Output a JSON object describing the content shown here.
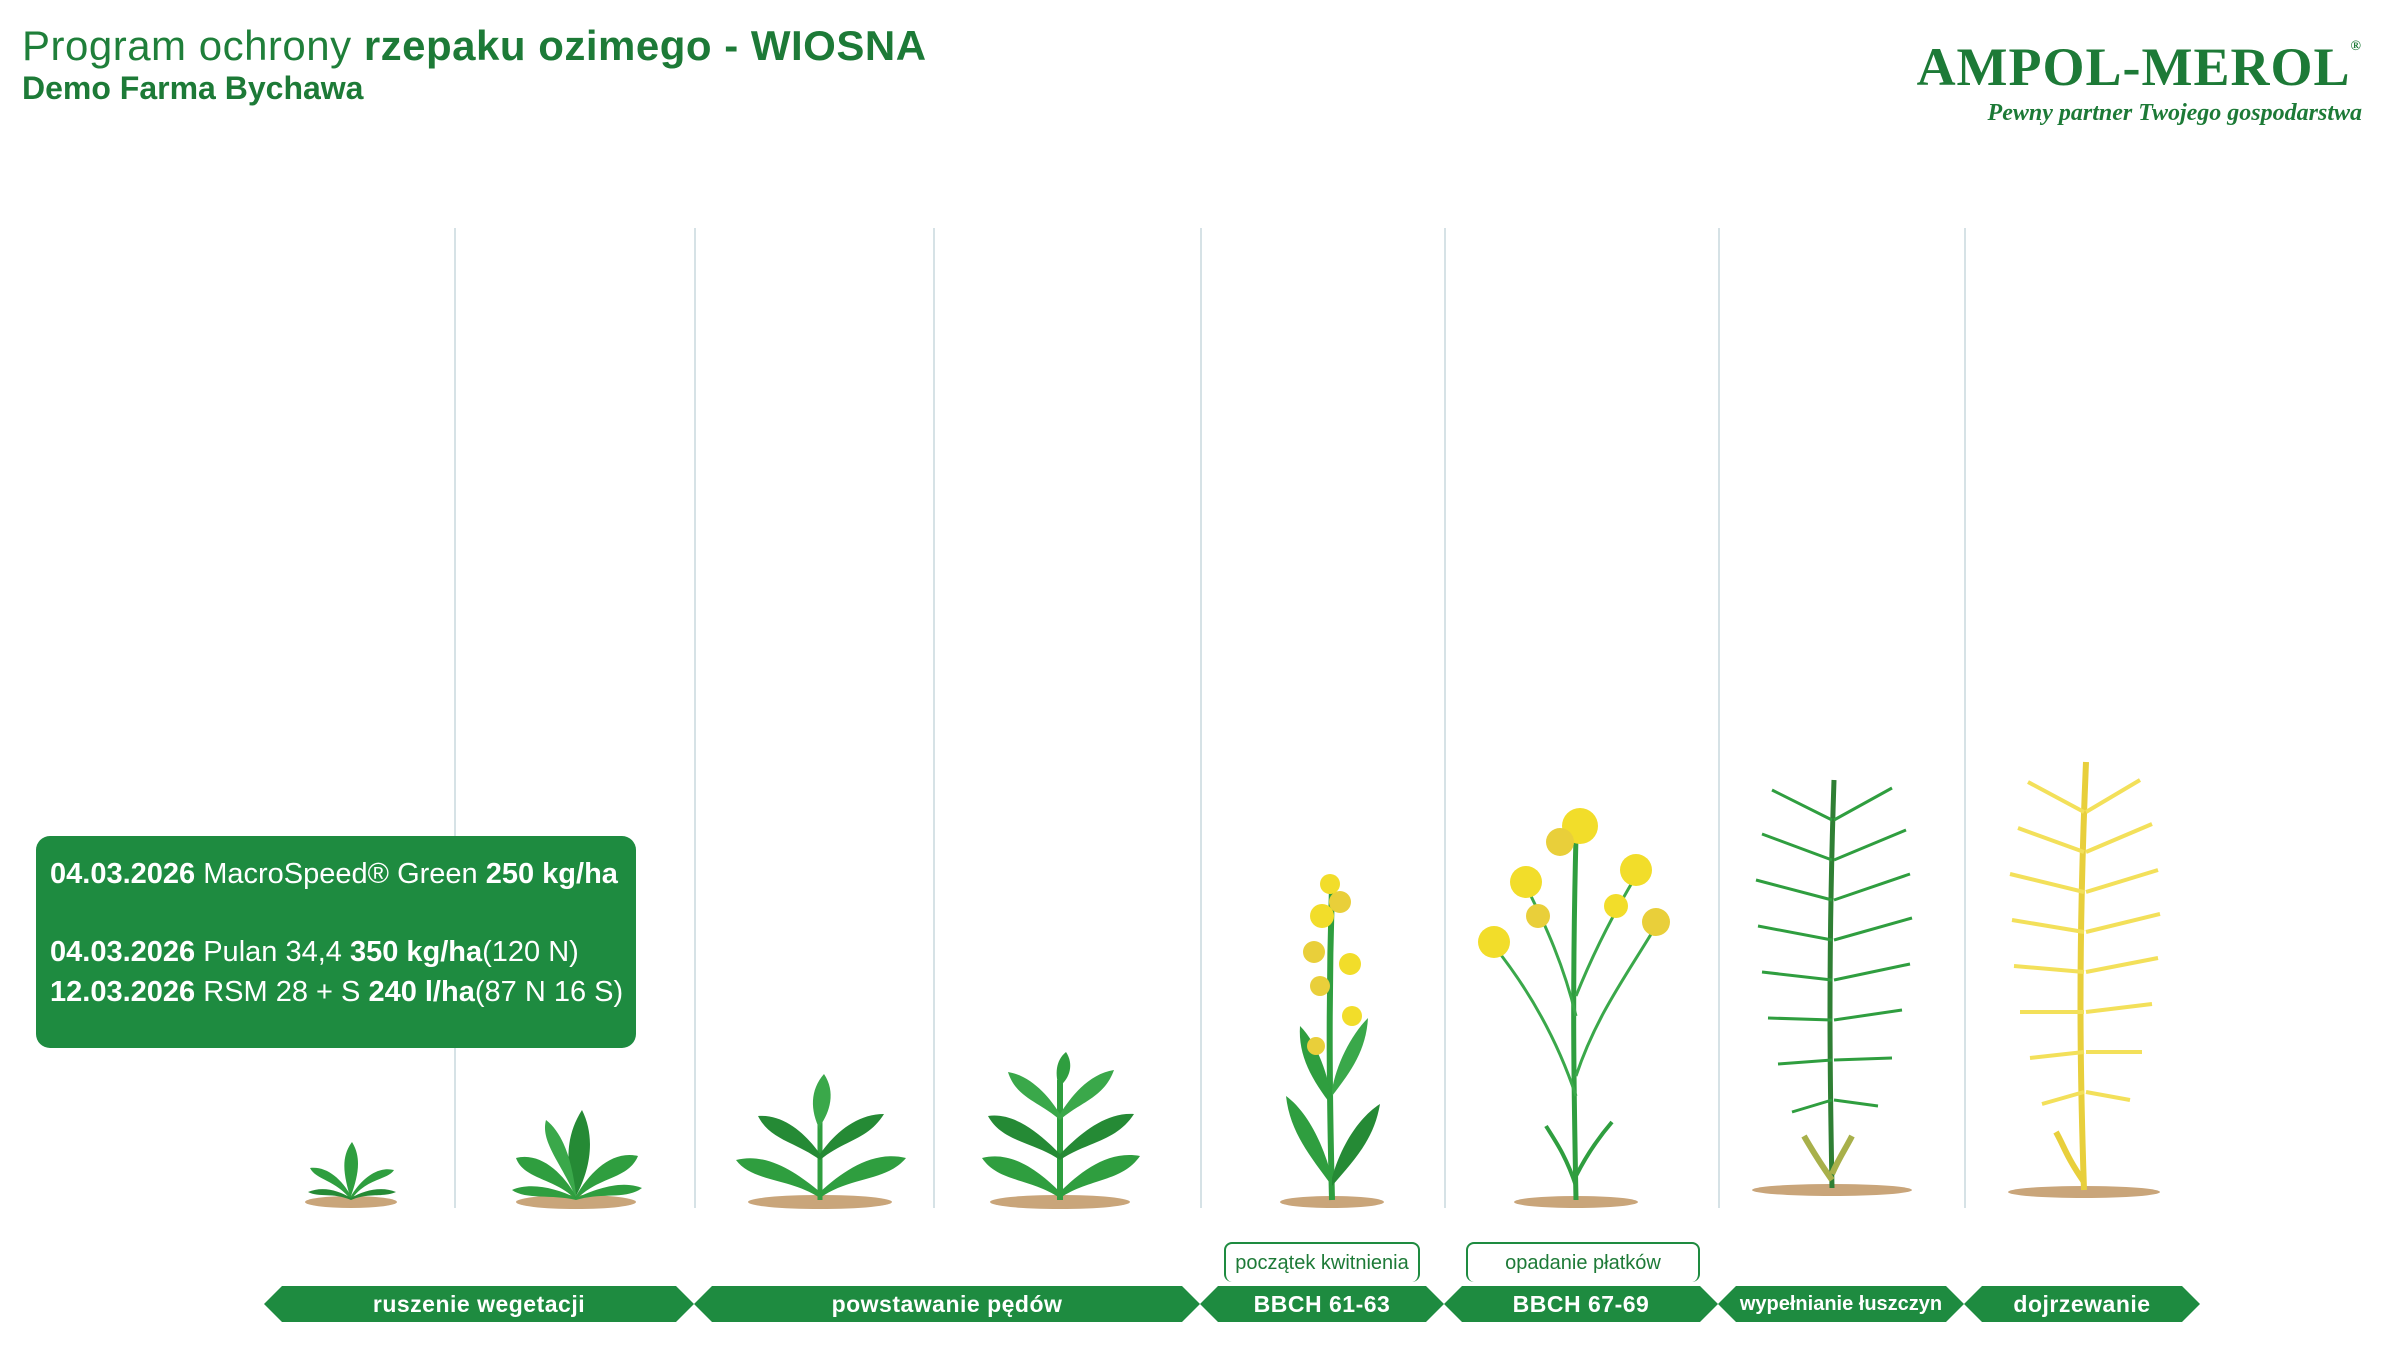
{
  "header": {
    "title_light": "Program ochrony",
    "title_bold": "rzepaku ozimego - WIOSNA",
    "subtitle": "Demo Farma Bychawa"
  },
  "brand": {
    "name": "AMPOL-MEROL",
    "registered": "®",
    "tagline": "Pewny partner Twojego gospodarstwa"
  },
  "treatments": [
    {
      "date": "04.03.2026",
      "product": "MacroSpeed® Green",
      "dose": "250 kg/ha",
      "note": ""
    },
    {
      "date": "04.03.2026",
      "product": "Pulan 34,4",
      "dose": "350 kg/ha",
      "note": "(120 N)"
    },
    {
      "date": "12.03.2026",
      "product": "RSM 28 + S",
      "dose": "240 l/ha",
      "note": "(87 N 16 S)"
    }
  ],
  "stages": [
    {
      "label": "ruszenie wegetacji",
      "top": ""
    },
    {
      "label": "powstawanie pędów",
      "top": ""
    },
    {
      "label": "BBCH 61-63",
      "top": "początek kwitnienia"
    },
    {
      "label": "BBCH 67-69",
      "top": "opadanie płatków"
    },
    {
      "label": "wypełnianie łuszczyn",
      "top": ""
    },
    {
      "label": "dojrzewanie",
      "top": ""
    }
  ],
  "colors": {
    "brand_green": "#1e8b40",
    "leaf_green": "#2f9e3f",
    "flower_yellow": "#f2dd2a",
    "ripe_yellow": "#f3e05a",
    "soil": "#c9a57a",
    "divider": "#d6e2e6"
  }
}
